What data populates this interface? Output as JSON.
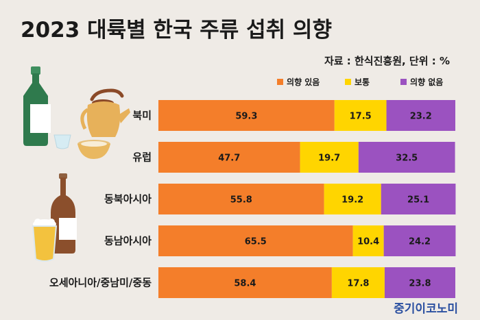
{
  "title": "2023 대륙별 한국 주류 섭취 의향",
  "source": "자료 : 한식진흥원, 단위 : %",
  "brand": "중기이코노미",
  "colors": {
    "intent_yes": "#f47e2a",
    "neutral": "#ffd500",
    "intent_no": "#9b52c0",
    "background": "#efebe6"
  },
  "icons": [
    "soju-bottle",
    "soju-cup",
    "kettle",
    "bowl",
    "beer-bottle",
    "beer-glass"
  ],
  "chart_data": {
    "type": "bar",
    "orientation": "horizontal",
    "stacked": true,
    "title": "",
    "xlabel": "",
    "ylabel": "",
    "xlim": [
      0,
      100
    ],
    "grid": false,
    "legend_position": "top-right",
    "categories": [
      "북미",
      "유럽",
      "동북아시아",
      "동남아시아",
      "오세아니아/중남미/중동"
    ],
    "series": [
      {
        "name": "의향 있음",
        "color": "#f47e2a",
        "values": [
          59.3,
          47.7,
          55.8,
          65.5,
          58.4
        ]
      },
      {
        "name": "보통",
        "color": "#ffd500",
        "values": [
          17.5,
          19.7,
          19.2,
          10.4,
          17.8
        ]
      },
      {
        "name": "의향 없음",
        "color": "#9b52c0",
        "values": [
          23.2,
          32.5,
          25.1,
          24.2,
          23.8
        ]
      }
    ]
  }
}
